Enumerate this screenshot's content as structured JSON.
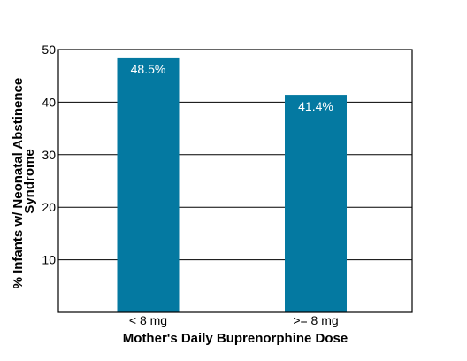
{
  "chart_data": {
    "type": "bar",
    "categories": [
      "< 8 mg",
      ">= 8 mg"
    ],
    "values": [
      48.5,
      41.4
    ],
    "data_labels": [
      "48.5%",
      "41.4%"
    ],
    "title": "",
    "xlabel": "Mother's Daily Buprenorphine Dose",
    "ylabel_lines": [
      "% Infants w/ Neonatal Abstinence",
      "Syndrome"
    ],
    "ylim": [
      0,
      50
    ],
    "yticks": [
      10,
      20,
      30,
      40,
      50
    ],
    "grid": true,
    "bar_color": "#0479A1",
    "grid_color": "#000000"
  }
}
